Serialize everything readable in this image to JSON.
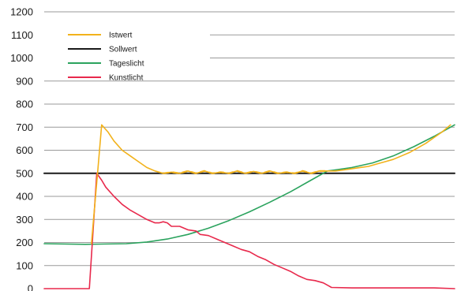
{
  "chart_data": {
    "type": "line",
    "title": "",
    "xlabel": "",
    "ylabel": "",
    "ylim": [
      0,
      1200
    ],
    "yticks": [
      0,
      100,
      200,
      300,
      400,
      500,
      600,
      700,
      800,
      900,
      1000,
      1100,
      1200
    ],
    "grid": true,
    "legend_position": "top-left",
    "xlim": [
      0,
      100
    ],
    "series": [
      {
        "name": "Istwert",
        "color": "#F2B21B",
        "x": [
          11.5,
          13.0,
          14.0,
          15.5,
          17.0,
          19.0,
          21.0,
          23.0,
          25.0,
          27.0,
          29.0,
          31.0,
          33.0,
          35.0,
          37.0,
          39.0,
          41.0,
          43.0,
          45.0,
          47.0,
          49.0,
          51.0,
          53.0,
          55.0,
          57.0,
          59.0,
          61.0,
          63.0,
          65.0,
          67.0,
          69.0,
          71.0,
          73.0,
          75.0,
          77.0,
          79.0,
          81.0,
          83.0,
          85.0,
          87.0,
          89.0,
          91.0,
          93.0,
          95.0,
          97.0,
          99.0
        ],
        "values": [
          195,
          500,
          710,
          680,
          640,
          600,
          575,
          550,
          525,
          510,
          500,
          505,
          500,
          510,
          500,
          510,
          500,
          505,
          500,
          510,
          500,
          508,
          500,
          510,
          500,
          505,
          500,
          510,
          500,
          510,
          510,
          510,
          515,
          520,
          525,
          530,
          540,
          550,
          560,
          575,
          590,
          610,
          630,
          655,
          680,
          710
        ]
      },
      {
        "name": "Sollwert",
        "color": "#1A1A1A",
        "x": [
          0,
          100
        ],
        "values": [
          500,
          500
        ]
      },
      {
        "name": "Tageslicht",
        "color": "#2BA35E",
        "x": [
          0,
          10,
          20,
          25,
          30,
          35,
          40,
          45,
          50,
          55,
          60,
          65,
          69,
          71,
          75,
          80,
          85,
          90,
          95,
          100
        ],
        "values": [
          195,
          192,
          195,
          202,
          215,
          235,
          262,
          295,
          333,
          375,
          420,
          470,
          510,
          515,
          525,
          545,
          575,
          615,
          660,
          710
        ]
      },
      {
        "name": "Kunstlicht",
        "color": "#E8294C",
        "x": [
          0,
          11,
          12.8,
          14,
          15,
          17,
          19,
          21,
          23,
          25,
          27,
          28,
          29,
          30,
          31,
          33,
          35,
          37,
          38,
          40,
          42,
          44,
          46,
          48,
          50,
          52,
          54,
          56,
          58,
          60,
          62,
          64,
          66,
          68,
          69,
          70,
          75,
          80,
          85,
          90,
          95,
          100
        ],
        "values": [
          0,
          0,
          500,
          470,
          440,
          400,
          365,
          340,
          320,
          300,
          285,
          285,
          290,
          285,
          270,
          270,
          255,
          250,
          235,
          230,
          215,
          200,
          185,
          170,
          160,
          140,
          125,
          105,
          90,
          75,
          55,
          40,
          35,
          25,
          15,
          5,
          3,
          3,
          3,
          3,
          3,
          0
        ]
      }
    ]
  }
}
